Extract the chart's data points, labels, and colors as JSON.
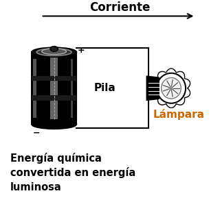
{
  "title": "Corriente",
  "battery_label": "Pila",
  "lamp_label": "Lámpara",
  "bottom_text": "Energía química\nconvertida en energía\nluminosa",
  "background_color": "#ffffff",
  "line_color": "#000000",
  "text_color": "#000000",
  "figsize": [
    3.2,
    2.92
  ],
  "dpi": 100,
  "lamp_label_color": "#cc6600"
}
